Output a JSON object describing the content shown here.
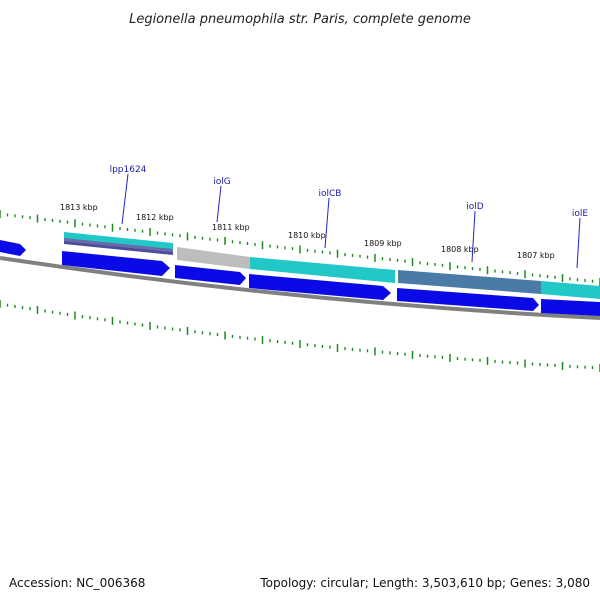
{
  "title": "Legionella pneumophila str. Paris, complete genome",
  "footer": {
    "accession": "Accession: NC_006368",
    "summary": "Topology: circular; Length: 3,503,610 bp; Genes: 3,080"
  },
  "scale_labels": [
    "1813 kbp",
    "1812 kbp",
    "1811 kbp",
    "1810 kbp",
    "1809 kbp",
    "1808 kbp",
    "1807 kbp"
  ],
  "gene_labels": [
    "lpp1624",
    "iolG",
    "iolCB",
    "iolD",
    "iolE"
  ],
  "colors": {
    "arrow_blue": "#0a0ae6",
    "teal": "#22c8c8",
    "gray": "#bdbdbd",
    "steelblue": "#4a7aa6",
    "backbone": "#808080",
    "tick_green": "#1e8a1e",
    "label_line": "#2222cc"
  }
}
